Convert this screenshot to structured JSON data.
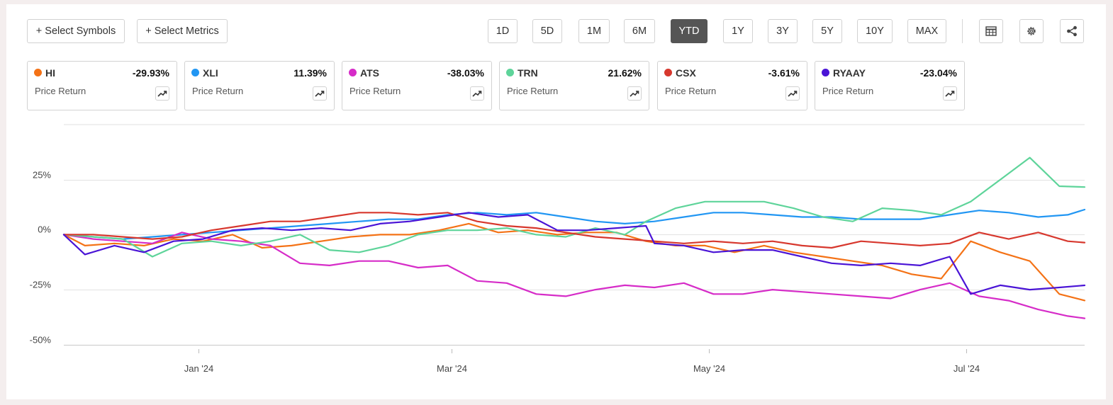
{
  "toolbar": {
    "select_symbols": "+ Select Symbols",
    "select_metrics": "+ Select Metrics",
    "ranges": [
      "1D",
      "5D",
      "1M",
      "6M",
      "YTD",
      "1Y",
      "3Y",
      "5Y",
      "10Y",
      "MAX"
    ],
    "active_range": "YTD",
    "icons": [
      "table-icon",
      "settings-gear-icon",
      "share-icon"
    ]
  },
  "cards": [
    {
      "symbol": "HI",
      "value": "-29.93%",
      "metric": "Price Return",
      "color": "#f47216"
    },
    {
      "symbol": "XLI",
      "value": "11.39%",
      "metric": "Price Return",
      "color": "#2196f3"
    },
    {
      "symbol": "ATS",
      "value": "-38.03%",
      "metric": "Price Return",
      "color": "#d62cc8"
    },
    {
      "symbol": "TRN",
      "value": "21.62%",
      "metric": "Price Return",
      "color": "#5ed49a"
    },
    {
      "symbol": "CSX",
      "value": "-3.61%",
      "metric": "Price Return",
      "color": "#d7382e"
    },
    {
      "symbol": "RYAAY",
      "value": "-23.04%",
      "metric": "Price Return",
      "color": "#4a14d6"
    }
  ],
  "chart_data": {
    "type": "line",
    "x_range": [
      "2023-11-30",
      "2024-07-29"
    ],
    "ylim": [
      -52,
      50
    ],
    "y_ticks": [
      25,
      0,
      -25,
      -50
    ],
    "y_tick_labels": [
      "25%",
      "0%",
      "-25%",
      "-50%"
    ],
    "x_ticks": [
      "2024-01-01",
      "2024-03-01",
      "2024-05-01",
      "2024-07-01"
    ],
    "x_tick_labels": [
      "Jan '24",
      "Mar '24",
      "May '24",
      "Jul '24"
    ],
    "grid": true,
    "series": [
      {
        "name": "HI",
        "color": "#f47216",
        "points": [
          [
            "2023-11-30",
            0
          ],
          [
            "2023-12-05",
            -5
          ],
          [
            "2023-12-12",
            -4
          ],
          [
            "2023-12-19",
            -5
          ],
          [
            "2023-12-26",
            -2
          ],
          [
            "2024-01-02",
            -3
          ],
          [
            "2024-01-09",
            0
          ],
          [
            "2024-01-16",
            -6
          ],
          [
            "2024-01-23",
            -5
          ],
          [
            "2024-01-30",
            -3
          ],
          [
            "2024-02-06",
            -1
          ],
          [
            "2024-02-13",
            0
          ],
          [
            "2024-02-20",
            0
          ],
          [
            "2024-02-27",
            2
          ],
          [
            "2024-03-05",
            5
          ],
          [
            "2024-03-12",
            1
          ],
          [
            "2024-03-19",
            2
          ],
          [
            "2024-03-26",
            0
          ],
          [
            "2024-04-02",
            1
          ],
          [
            "2024-04-09",
            1
          ],
          [
            "2024-04-16",
            -3
          ],
          [
            "2024-04-23",
            -5
          ],
          [
            "2024-04-30",
            -5
          ],
          [
            "2024-05-07",
            -8
          ],
          [
            "2024-05-14",
            -5
          ],
          [
            "2024-05-21",
            -8
          ],
          [
            "2024-05-28",
            -10
          ],
          [
            "2024-06-04",
            -12
          ],
          [
            "2024-06-11",
            -14
          ],
          [
            "2024-06-18",
            -18
          ],
          [
            "2024-06-25",
            -20
          ],
          [
            "2024-07-02",
            -3
          ],
          [
            "2024-07-09",
            -8
          ],
          [
            "2024-07-16",
            -12
          ],
          [
            "2024-07-23",
            -27
          ],
          [
            "2024-07-29",
            -29.93
          ]
        ]
      },
      {
        "name": "XLI",
        "color": "#2196f3",
        "points": [
          [
            "2023-11-30",
            0
          ],
          [
            "2023-12-07",
            -1
          ],
          [
            "2023-12-14",
            -2
          ],
          [
            "2023-12-21",
            -1
          ],
          [
            "2023-12-28",
            0
          ],
          [
            "2024-01-04",
            1
          ],
          [
            "2024-01-11",
            2
          ],
          [
            "2024-01-18",
            3
          ],
          [
            "2024-01-25",
            4
          ],
          [
            "2024-02-01",
            5
          ],
          [
            "2024-02-08",
            6
          ],
          [
            "2024-02-15",
            7
          ],
          [
            "2024-02-22",
            7
          ],
          [
            "2024-02-29",
            9
          ],
          [
            "2024-03-07",
            10
          ],
          [
            "2024-03-14",
            9
          ],
          [
            "2024-03-21",
            10
          ],
          [
            "2024-03-28",
            8
          ],
          [
            "2024-04-04",
            6
          ],
          [
            "2024-04-11",
            5
          ],
          [
            "2024-04-18",
            6
          ],
          [
            "2024-04-25",
            8
          ],
          [
            "2024-05-02",
            10
          ],
          [
            "2024-05-09",
            10
          ],
          [
            "2024-05-16",
            9
          ],
          [
            "2024-05-23",
            8
          ],
          [
            "2024-05-30",
            8
          ],
          [
            "2024-06-06",
            7
          ],
          [
            "2024-06-13",
            7
          ],
          [
            "2024-06-20",
            7
          ],
          [
            "2024-06-27",
            9
          ],
          [
            "2024-07-04",
            11
          ],
          [
            "2024-07-11",
            10
          ],
          [
            "2024-07-18",
            8
          ],
          [
            "2024-07-25",
            9
          ],
          [
            "2024-07-29",
            11.39
          ]
        ]
      },
      {
        "name": "ATS",
        "color": "#d62cc8",
        "points": [
          [
            "2023-11-30",
            0
          ],
          [
            "2023-12-07",
            -2
          ],
          [
            "2023-12-14",
            -3
          ],
          [
            "2023-12-21",
            -4
          ],
          [
            "2023-12-28",
            1
          ],
          [
            "2024-01-04",
            -2
          ],
          [
            "2024-01-11",
            -3
          ],
          [
            "2024-01-18",
            -5
          ],
          [
            "2024-01-25",
            -13
          ],
          [
            "2024-02-01",
            -14
          ],
          [
            "2024-02-08",
            -12
          ],
          [
            "2024-02-15",
            -12
          ],
          [
            "2024-02-22",
            -15
          ],
          [
            "2024-02-29",
            -14
          ],
          [
            "2024-03-07",
            -21
          ],
          [
            "2024-03-14",
            -22
          ],
          [
            "2024-03-21",
            -27
          ],
          [
            "2024-03-28",
            -28
          ],
          [
            "2024-04-04",
            -25
          ],
          [
            "2024-04-11",
            -23
          ],
          [
            "2024-04-18",
            -24
          ],
          [
            "2024-04-25",
            -22
          ],
          [
            "2024-05-02",
            -27
          ],
          [
            "2024-05-09",
            -27
          ],
          [
            "2024-05-16",
            -25
          ],
          [
            "2024-05-23",
            -26
          ],
          [
            "2024-05-30",
            -27
          ],
          [
            "2024-06-06",
            -28
          ],
          [
            "2024-06-13",
            -29
          ],
          [
            "2024-06-20",
            -25
          ],
          [
            "2024-06-27",
            -22
          ],
          [
            "2024-07-04",
            -28
          ],
          [
            "2024-07-11",
            -30
          ],
          [
            "2024-07-18",
            -34
          ],
          [
            "2024-07-25",
            -37
          ],
          [
            "2024-07-29",
            -38.03
          ]
        ]
      },
      {
        "name": "TRN",
        "color": "#5ed49a",
        "points": [
          [
            "2023-11-30",
            0
          ],
          [
            "2023-12-07",
            -1
          ],
          [
            "2023-12-14",
            -2
          ],
          [
            "2023-12-21",
            -10
          ],
          [
            "2023-12-28",
            -4
          ],
          [
            "2024-01-04",
            -3
          ],
          [
            "2024-01-11",
            -5
          ],
          [
            "2024-01-18",
            -3
          ],
          [
            "2024-01-25",
            0
          ],
          [
            "2024-02-01",
            -7
          ],
          [
            "2024-02-08",
            -8
          ],
          [
            "2024-02-15",
            -5
          ],
          [
            "2024-02-22",
            0
          ],
          [
            "2024-02-29",
            2
          ],
          [
            "2024-03-07",
            2
          ],
          [
            "2024-03-14",
            3
          ],
          [
            "2024-03-21",
            0
          ],
          [
            "2024-03-28",
            -1
          ],
          [
            "2024-04-04",
            3
          ],
          [
            "2024-04-11",
            0
          ],
          [
            "2024-04-16",
            6
          ],
          [
            "2024-04-23",
            12
          ],
          [
            "2024-04-30",
            15
          ],
          [
            "2024-05-07",
            15
          ],
          [
            "2024-05-14",
            15
          ],
          [
            "2024-05-21",
            12
          ],
          [
            "2024-05-28",
            8
          ],
          [
            "2024-06-04",
            6
          ],
          [
            "2024-06-11",
            12
          ],
          [
            "2024-06-18",
            11
          ],
          [
            "2024-06-25",
            9
          ],
          [
            "2024-07-02",
            15
          ],
          [
            "2024-07-09",
            25
          ],
          [
            "2024-07-16",
            35
          ],
          [
            "2024-07-23",
            22
          ],
          [
            "2024-07-29",
            21.62
          ]
        ]
      },
      {
        "name": "CSX",
        "color": "#d7382e",
        "points": [
          [
            "2023-11-30",
            0
          ],
          [
            "2023-12-07",
            0
          ],
          [
            "2023-12-14",
            -1
          ],
          [
            "2023-12-21",
            -2
          ],
          [
            "2023-12-28",
            -1
          ],
          [
            "2024-01-04",
            2
          ],
          [
            "2024-01-11",
            4
          ],
          [
            "2024-01-18",
            6
          ],
          [
            "2024-01-25",
            6
          ],
          [
            "2024-02-01",
            8
          ],
          [
            "2024-02-08",
            10
          ],
          [
            "2024-02-15",
            10
          ],
          [
            "2024-02-22",
            9
          ],
          [
            "2024-02-29",
            10
          ],
          [
            "2024-03-07",
            6
          ],
          [
            "2024-03-14",
            4
          ],
          [
            "2024-03-21",
            3
          ],
          [
            "2024-03-28",
            1
          ],
          [
            "2024-04-04",
            -1
          ],
          [
            "2024-04-11",
            -2
          ],
          [
            "2024-04-18",
            -3
          ],
          [
            "2024-04-25",
            -4
          ],
          [
            "2024-05-02",
            -3
          ],
          [
            "2024-05-09",
            -4
          ],
          [
            "2024-05-16",
            -3
          ],
          [
            "2024-05-23",
            -5
          ],
          [
            "2024-05-30",
            -6
          ],
          [
            "2024-06-06",
            -3
          ],
          [
            "2024-06-13",
            -4
          ],
          [
            "2024-06-20",
            -5
          ],
          [
            "2024-06-27",
            -4
          ],
          [
            "2024-07-04",
            1
          ],
          [
            "2024-07-11",
            -2
          ],
          [
            "2024-07-18",
            1
          ],
          [
            "2024-07-25",
            -3
          ],
          [
            "2024-07-29",
            -3.61
          ]
        ]
      },
      {
        "name": "RYAAY",
        "color": "#4a14d6",
        "points": [
          [
            "2023-11-30",
            0
          ],
          [
            "2023-12-05",
            -9
          ],
          [
            "2023-12-12",
            -5
          ],
          [
            "2023-12-19",
            -8
          ],
          [
            "2023-12-26",
            -3
          ],
          [
            "2024-01-02",
            -2
          ],
          [
            "2024-01-09",
            2
          ],
          [
            "2024-01-16",
            3
          ],
          [
            "2024-01-23",
            2
          ],
          [
            "2024-01-30",
            3
          ],
          [
            "2024-02-06",
            2
          ],
          [
            "2024-02-13",
            5
          ],
          [
            "2024-02-20",
            6
          ],
          [
            "2024-02-27",
            8
          ],
          [
            "2024-03-05",
            10
          ],
          [
            "2024-03-12",
            8
          ],
          [
            "2024-03-19",
            9
          ],
          [
            "2024-03-26",
            2
          ],
          [
            "2024-04-02",
            2
          ],
          [
            "2024-04-09",
            3
          ],
          [
            "2024-04-16",
            4
          ],
          [
            "2024-04-18",
            -4
          ],
          [
            "2024-04-25",
            -5
          ],
          [
            "2024-05-02",
            -8
          ],
          [
            "2024-05-09",
            -7
          ],
          [
            "2024-05-16",
            -7
          ],
          [
            "2024-05-23",
            -10
          ],
          [
            "2024-05-30",
            -13
          ],
          [
            "2024-06-06",
            -14
          ],
          [
            "2024-06-13",
            -13
          ],
          [
            "2024-06-20",
            -14
          ],
          [
            "2024-06-27",
            -10
          ],
          [
            "2024-07-02",
            -27
          ],
          [
            "2024-07-09",
            -23
          ],
          [
            "2024-07-16",
            -25
          ],
          [
            "2024-07-23",
            -24
          ],
          [
            "2024-07-29",
            -23.04
          ]
        ]
      }
    ]
  }
}
